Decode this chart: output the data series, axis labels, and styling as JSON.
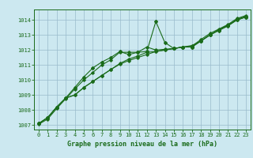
{
  "title": "Graphe pression niveau de la mer (hPa)",
  "background_color": "#cce8f0",
  "grid_color": "#99bbcc",
  "line_color": "#1a6b1a",
  "xlim": [
    -0.5,
    23.5
  ],
  "ylim": [
    1006.7,
    1014.7
  ],
  "xticks": [
    0,
    1,
    2,
    3,
    4,
    5,
    6,
    7,
    8,
    9,
    10,
    11,
    12,
    13,
    14,
    15,
    16,
    17,
    18,
    19,
    20,
    21,
    22,
    23
  ],
  "yticks": [
    1007,
    1008,
    1009,
    1010,
    1011,
    1012,
    1013,
    1014
  ],
  "series1": {
    "x": [
      0,
      1,
      2,
      3,
      4,
      5,
      6,
      7,
      8,
      9,
      10,
      11,
      12,
      13,
      14,
      15,
      16,
      17,
      18,
      19,
      20,
      21,
      22,
      23
    ],
    "y": [
      1007.1,
      1007.5,
      1008.2,
      1008.8,
      1009.5,
      1010.2,
      1010.8,
      1011.2,
      1011.5,
      1011.9,
      1011.7,
      1011.85,
      1011.9,
      1013.9,
      1012.5,
      1012.1,
      1012.2,
      1012.2,
      1012.6,
      1013.0,
      1013.3,
      1013.6,
      1014.0,
      1014.2
    ]
  },
  "series2": {
    "x": [
      0,
      1,
      2,
      3,
      4,
      5,
      6,
      7,
      8,
      9,
      10,
      11,
      12,
      13,
      14,
      15,
      16,
      17,
      18,
      19,
      20,
      21,
      22,
      23
    ],
    "y": [
      1007.1,
      1007.5,
      1008.2,
      1008.8,
      1009.0,
      1009.5,
      1009.9,
      1010.3,
      1010.7,
      1011.1,
      1011.4,
      1011.6,
      1011.85,
      1011.9,
      1012.0,
      1012.1,
      1012.2,
      1012.3,
      1012.6,
      1013.0,
      1013.35,
      1013.65,
      1014.05,
      1014.25
    ]
  },
  "series3": {
    "x": [
      0,
      1,
      2,
      3,
      4,
      5,
      6,
      7,
      8,
      9,
      10,
      11,
      12,
      13,
      14,
      15,
      16,
      17,
      18,
      19,
      20,
      21,
      22,
      23
    ],
    "y": [
      1007.1,
      1007.5,
      1008.2,
      1008.8,
      1009.0,
      1009.5,
      1009.9,
      1010.3,
      1010.7,
      1011.05,
      1011.3,
      1011.5,
      1011.7,
      1011.9,
      1012.0,
      1012.1,
      1012.2,
      1012.2,
      1012.6,
      1013.0,
      1013.35,
      1013.65,
      1014.0,
      1014.2
    ]
  },
  "series4": {
    "x": [
      0,
      1,
      2,
      3,
      4,
      5,
      6,
      7,
      8,
      9,
      10,
      11,
      12,
      13,
      14,
      15,
      16,
      17,
      18,
      19,
      20,
      21,
      22,
      23
    ],
    "y": [
      1007.05,
      1007.4,
      1008.1,
      1008.75,
      1009.4,
      1010.0,
      1010.5,
      1011.0,
      1011.35,
      1011.85,
      1011.85,
      1011.85,
      1012.2,
      1012.0,
      1012.05,
      1012.1,
      1012.2,
      1012.25,
      1012.7,
      1013.1,
      1013.4,
      1013.7,
      1014.1,
      1014.3
    ]
  },
  "xlabel_fontsize": 6.0,
  "tick_fontsize": 5.0
}
